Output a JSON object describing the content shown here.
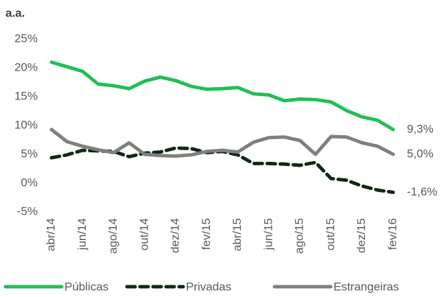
{
  "chart_data": {
    "type": "line",
    "y_label": "a.a.",
    "categories": [
      "abr/14",
      null,
      "jun/14",
      null,
      "ago/14",
      null,
      "out/14",
      null,
      "dez/14",
      null,
      "fev/15",
      null,
      "abr/15",
      null,
      "jun/15",
      null,
      "ago/15",
      null,
      "out/15",
      null,
      "dez/15",
      null,
      "fev/16"
    ],
    "series": [
      {
        "name": "Públicas",
        "color": "#1fbf55",
        "dashed": false,
        "values": [
          21.0,
          20.2,
          19.4,
          17.2,
          16.9,
          16.4,
          17.7,
          18.4,
          17.8,
          16.8,
          16.3,
          16.4,
          16.6,
          15.5,
          15.3,
          14.3,
          14.6,
          14.5,
          14.1,
          12.6,
          11.5,
          10.9,
          9.3
        ],
        "value_labels": [
          null,
          null,
          null,
          null,
          null,
          null,
          null,
          null,
          null,
          null,
          null,
          null,
          null,
          null,
          null,
          null,
          null,
          null,
          null,
          null,
          null,
          null,
          "9,3%"
        ]
      },
      {
        "name": "Privadas",
        "color": "#0d2a12",
        "dashed": true,
        "values": [
          4.4,
          4.9,
          5.7,
          5.6,
          5.5,
          4.6,
          5.2,
          5.4,
          6.1,
          6.0,
          5.3,
          5.5,
          4.9,
          3.4,
          3.4,
          3.3,
          3.1,
          3.6,
          0.8,
          0.5,
          -0.5,
          -1.2,
          -1.6
        ],
        "value_labels": [
          null,
          null,
          null,
          null,
          null,
          null,
          null,
          null,
          null,
          null,
          null,
          null,
          null,
          null,
          null,
          null,
          null,
          null,
          null,
          null,
          null,
          null,
          "-1,6%"
        ]
      },
      {
        "name": "Estrangeiras",
        "color": "#7f7f7f",
        "dashed": false,
        "values": [
          9.3,
          7.2,
          6.4,
          5.8,
          5.3,
          7.0,
          5.0,
          4.8,
          4.7,
          4.9,
          5.5,
          5.7,
          5.4,
          7.1,
          7.9,
          8.0,
          7.4,
          5.0,
          8.1,
          8.0,
          7.0,
          6.4,
          5.0
        ],
        "value_labels": [
          null,
          null,
          null,
          null,
          null,
          null,
          null,
          null,
          null,
          null,
          null,
          null,
          null,
          null,
          null,
          null,
          null,
          null,
          null,
          null,
          null,
          null,
          "5,0%"
        ]
      }
    ],
    "ylim": [
      -5,
      25
    ],
    "yticks": [
      {
        "value": -5,
        "label": "-5%"
      },
      {
        "value": 0,
        "label": "0%"
      },
      {
        "value": 5,
        "label": "5%"
      },
      {
        "value": 10,
        "label": "10%"
      },
      {
        "value": 15,
        "label": "15%"
      },
      {
        "value": 20,
        "label": "20%"
      },
      {
        "value": 25,
        "label": "25%"
      }
    ],
    "grid": false,
    "legend": "bottom"
  }
}
